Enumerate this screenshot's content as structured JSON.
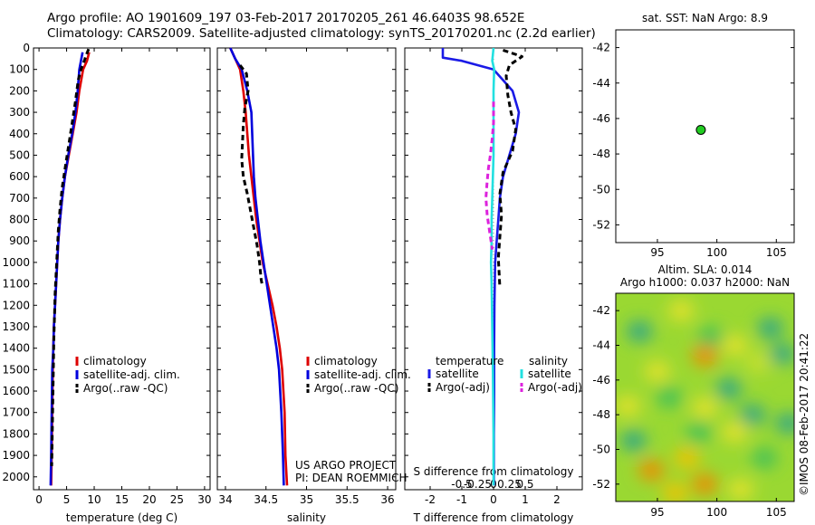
{
  "header": {
    "line1": "Argo profile: AO 1901609_197 03-Feb-2017 20170205_261 46.6403S 98.652E",
    "line2": "Climatology: CARS2009. Satellite-adjusted climatology: synTS_20170201.nc (2.2d earlier)"
  },
  "colors": {
    "climatology": "#dd0000",
    "satellite": "#0000dd",
    "argo": "#000000",
    "t_satellite": "#1a1ae6",
    "s_satellite": "#22e0e0",
    "s_argo": "#dd22dd"
  },
  "chart_data": [
    {
      "type": "line",
      "name": "temperature-profile",
      "xlabel": "temperature (deg C)",
      "ylabel": "",
      "xlim": [
        -1,
        31
      ],
      "ylim": [
        2060,
        0
      ],
      "y_reversed": true,
      "x_ticks": [
        "0",
        "5",
        "10",
        "15",
        "20",
        "25",
        "30"
      ],
      "x_tick_values": [
        0,
        5,
        10,
        15,
        20,
        25,
        30
      ],
      "y_ticks": [
        "0",
        "100",
        "200",
        "300",
        "400",
        "500",
        "600",
        "700",
        "800",
        "900",
        "1000",
        "1100",
        "1200",
        "1300",
        "1400",
        "1500",
        "1600",
        "1700",
        "1800",
        "1900",
        "2000"
      ],
      "y_tick_values": [
        0,
        100,
        200,
        300,
        400,
        500,
        600,
        700,
        800,
        900,
        1000,
        1100,
        1200,
        1300,
        1400,
        1500,
        1600,
        1700,
        1800,
        1900,
        2000
      ],
      "legend": [
        "climatology",
        "satellite-adj. clim.",
        "Argo(..raw -QC)"
      ],
      "series": [
        {
          "name": "climatology",
          "color": "#dd0000",
          "dashed": false,
          "x": [
            9.1,
            8.7,
            8.0,
            7.3,
            6.8,
            6.1,
            5.4,
            4.7,
            4.2,
            3.8,
            3.5,
            3.3,
            3.1,
            2.9,
            2.7,
            2.6,
            2.5,
            2.4,
            2.3,
            2.2
          ],
          "y": [
            20,
            60,
            100,
            200,
            300,
            400,
            500,
            600,
            700,
            800,
            900,
            1000,
            1100,
            1200,
            1300,
            1400,
            1500,
            1700,
            1900,
            2040
          ]
        },
        {
          "name": "satellite-adj. clim.",
          "color": "#0000dd",
          "dashed": false,
          "x": [
            7.9,
            7.6,
            7.3,
            7.0,
            6.6,
            6.0,
            5.3,
            4.7,
            4.2,
            3.8,
            3.5,
            3.3,
            3.1,
            2.9,
            2.7,
            2.6,
            2.4,
            2.3,
            2.2,
            2.1
          ],
          "y": [
            20,
            60,
            100,
            200,
            300,
            400,
            500,
            600,
            700,
            800,
            900,
            1000,
            1100,
            1200,
            1300,
            1400,
            1500,
            1700,
            1900,
            2040
          ]
        },
        {
          "name": "Argo(..raw -QC)",
          "color": "#000000",
          "dashed": true,
          "x": [
            9.0,
            8.6,
            8.2,
            7.6,
            7.1,
            6.6,
            6.0,
            5.4,
            4.8,
            4.2,
            3.8,
            3.5,
            3.3,
            3.1,
            2.9,
            2.8,
            2.7,
            2.6,
            2.5,
            2.4,
            2.3
          ],
          "y": [
            5,
            30,
            60,
            100,
            150,
            250,
            350,
            450,
            550,
            650,
            750,
            850,
            950,
            1050,
            1150,
            1250,
            1350,
            1500,
            1650,
            1800,
            1950
          ]
        }
      ]
    },
    {
      "type": "line",
      "name": "salinity-profile",
      "xlabel": "salinity",
      "ylabel": "",
      "xlim": [
        33.9,
        36.1
      ],
      "ylim": [
        2060,
        0
      ],
      "y_reversed": true,
      "x_ticks": [
        "34",
        "34.5",
        "35",
        "35.5",
        "36"
      ],
      "x_tick_values": [
        34,
        34.5,
        35,
        35.5,
        36
      ],
      "legend": [
        "climatology",
        "satellite-adj. clim.",
        "Argo(..raw -QC)"
      ],
      "annotation": [
        "US ARGO PROJECT",
        "PI: DEAN ROEMMICH"
      ],
      "series": [
        {
          "name": "climatology",
          "color": "#dd0000",
          "dashed": false,
          "x": [
            34.06,
            34.12,
            34.18,
            34.22,
            34.25,
            34.27,
            34.29,
            34.32,
            34.35,
            34.38,
            34.42,
            34.46,
            34.52,
            34.58,
            34.63,
            34.67,
            34.7,
            34.73,
            34.74,
            34.76
          ],
          "y": [
            0,
            50,
            100,
            200,
            300,
            400,
            500,
            600,
            700,
            800,
            900,
            1000,
            1100,
            1200,
            1300,
            1400,
            1500,
            1700,
            1900,
            2040
          ]
        },
        {
          "name": "satellite-adj. clim.",
          "color": "#0000dd",
          "dashed": false,
          "x": [
            34.06,
            34.12,
            34.2,
            34.27,
            34.32,
            34.33,
            34.34,
            34.35,
            34.37,
            34.4,
            34.43,
            34.47,
            34.51,
            34.55,
            34.59,
            34.63,
            34.66,
            34.69,
            34.71,
            34.72
          ],
          "y": [
            0,
            50,
            100,
            200,
            300,
            400,
            500,
            600,
            700,
            800,
            900,
            1000,
            1100,
            1200,
            1300,
            1400,
            1500,
            1700,
            1900,
            2040
          ]
        },
        {
          "name": "Argo(..raw -QC)",
          "color": "#000000",
          "dashed": true,
          "x": [
            34.18,
            34.26,
            34.28,
            34.24,
            34.22,
            34.21,
            34.2,
            34.22,
            34.27,
            34.31,
            34.35,
            34.39,
            34.42,
            34.44,
            34.45
          ],
          "y": [
            80,
            120,
            200,
            280,
            360,
            440,
            520,
            600,
            680,
            760,
            840,
            920,
            1000,
            1080,
            1100
          ]
        }
      ]
    },
    {
      "type": "line",
      "name": "difference-profile",
      "xlabel": "T difference from climatology",
      "top_label": "S difference from climatology",
      "xlim": [
        -2.8,
        2.8
      ],
      "ylim": [
        2060,
        0
      ],
      "y_reversed": true,
      "x_ticks": [
        "-2",
        "-1",
        "0",
        "1",
        "2"
      ],
      "x_tick_values": [
        -2,
        -1,
        0,
        1,
        2
      ],
      "s_ticks": [
        "-0.5",
        "-0.25",
        "0",
        "0.25",
        "0.5"
      ],
      "s_tick_values": [
        -0.5,
        -0.25,
        0,
        0.25,
        0.5
      ],
      "legend_headers": [
        "temperature",
        "salinity"
      ],
      "legend": [
        "satellite",
        "Argo(-adj)",
        "satellite",
        "Argo(-adj)"
      ],
      "series": [
        {
          "name": "satellite",
          "group": "temperature",
          "color": "#1a1ae6",
          "dashed": false,
          "x": [
            -1.6,
            -1.6,
            -1.0,
            0.0,
            0.3,
            0.6,
            0.8,
            0.7,
            0.5,
            0.3,
            0.2,
            0.15,
            0.1,
            0.05,
            0.03,
            0.02,
            0.02,
            0.01,
            0.01
          ],
          "y": [
            0,
            45,
            60,
            100,
            150,
            200,
            300,
            400,
            500,
            600,
            700,
            800,
            900,
            1000,
            1200,
            1400,
            1600,
            1800,
            2040
          ]
        },
        {
          "name": "Argo(-adj)",
          "group": "temperature",
          "color": "#000000",
          "dashed": true,
          "x": [
            0.3,
            0.6,
            0.9,
            0.5,
            0.4,
            0.45,
            0.55,
            0.7,
            0.6,
            0.3,
            0.2,
            0.25,
            0.2,
            0.15,
            0.18,
            0.2
          ],
          "y": [
            10,
            25,
            40,
            80,
            130,
            220,
            300,
            380,
            480,
            580,
            680,
            780,
            880,
            980,
            1060,
            1120
          ]
        },
        {
          "name": "satellite",
          "group": "salinity",
          "color": "#22e0e0",
          "dashed": false,
          "x": [
            0.0,
            -0.02,
            0.01,
            0.0,
            0.0,
            0.0,
            0.0,
            -0.01,
            -0.02,
            -0.03,
            -0.03,
            -0.04,
            -0.03,
            -0.02,
            -0.01,
            0.0,
            0.0
          ],
          "y": [
            0,
            60,
            100,
            200,
            300,
            400,
            500,
            600,
            700,
            800,
            900,
            1000,
            1100,
            1300,
            1500,
            1800,
            2040
          ]
        },
        {
          "name": "Argo(-adj)",
          "group": "salinity",
          "color": "#dd22dd",
          "dashed": true,
          "x": [
            0.0,
            0.0,
            -0.02,
            -0.05,
            -0.08,
            -0.1,
            -0.12,
            -0.1,
            -0.06,
            -0.02
          ],
          "y": [
            250,
            350,
            420,
            500,
            560,
            620,
            700,
            780,
            860,
            940
          ]
        }
      ]
    },
    {
      "type": "scatter",
      "name": "position-map",
      "title": "sat. SST: NaN Argo: 8.9",
      "xlim": [
        91.5,
        106.5
      ],
      "ylim": [
        -53,
        -41
      ],
      "x_ticks": [
        "95",
        "100",
        "105"
      ],
      "x_tick_values": [
        95,
        100,
        105
      ],
      "y_ticks": [
        "-42",
        "-44",
        "-46",
        "-48",
        "-50",
        "-52"
      ],
      "y_tick_values": [
        -42,
        -44,
        -46,
        -48,
        -50,
        -52
      ],
      "points": [
        {
          "x": 98.652,
          "y": -46.6403,
          "color": "#22cc22"
        }
      ]
    },
    {
      "type": "heatmap",
      "name": "altimetry-map",
      "title_line1": "Altim. SLA: 0.014",
      "title_line2": "Argo h1000: 0.037 h2000: NaN",
      "xlim": [
        91.5,
        106.5
      ],
      "ylim": [
        -53,
        -41
      ],
      "x_ticks": [
        "95",
        "100",
        "105"
      ],
      "x_tick_values": [
        95,
        100,
        105
      ],
      "y_ticks": [
        "-42",
        "-44",
        "-46",
        "-48",
        "-50",
        "-52"
      ],
      "y_tick_values": [
        -42,
        -44,
        -46,
        -48,
        -50,
        -52
      ],
      "blobs": [
        {
          "x": 93.5,
          "y": -43.2,
          "v": -0.6
        },
        {
          "x": 95.0,
          "y": -45.5,
          "v": 0.5
        },
        {
          "x": 97.0,
          "y": -42.0,
          "v": 0.6
        },
        {
          "x": 99.5,
          "y": -43.5,
          "v": -0.4
        },
        {
          "x": 101.5,
          "y": -44.0,
          "v": 0.4
        },
        {
          "x": 103.5,
          "y": -45.0,
          "v": 0.3
        },
        {
          "x": 104.5,
          "y": -43.0,
          "v": -0.6
        },
        {
          "x": 99.0,
          "y": -44.6,
          "v": 0.9
        },
        {
          "x": 105.5,
          "y": -44.5,
          "v": -0.5
        },
        {
          "x": 92.5,
          "y": -47.5,
          "v": 0.4
        },
        {
          "x": 96.0,
          "y": -47.0,
          "v": -0.3
        },
        {
          "x": 99.0,
          "y": -47.6,
          "v": 0.5
        },
        {
          "x": 101.0,
          "y": -46.5,
          "v": -0.5
        },
        {
          "x": 103.0,
          "y": -48.0,
          "v": -0.8
        },
        {
          "x": 93.0,
          "y": -49.5,
          "v": -0.5
        },
        {
          "x": 98.5,
          "y": -49.0,
          "v": -0.4
        },
        {
          "x": 101.5,
          "y": -49.0,
          "v": 0.5
        },
        {
          "x": 94.5,
          "y": -51.2,
          "v": 1.0
        },
        {
          "x": 97.5,
          "y": -50.5,
          "v": 0.8
        },
        {
          "x": 99.0,
          "y": -52.0,
          "v": 1.0
        },
        {
          "x": 96.5,
          "y": -52.5,
          "v": 0.7
        },
        {
          "x": 104.0,
          "y": -50.5,
          "v": -0.3
        },
        {
          "x": 102.0,
          "y": -52.3,
          "v": 0.4
        },
        {
          "x": 106.0,
          "y": -48.5,
          "v": -0.6
        }
      ]
    }
  ],
  "footer": {
    "watermark": "©IMOS 08-Feb-2017 20:41:22"
  }
}
